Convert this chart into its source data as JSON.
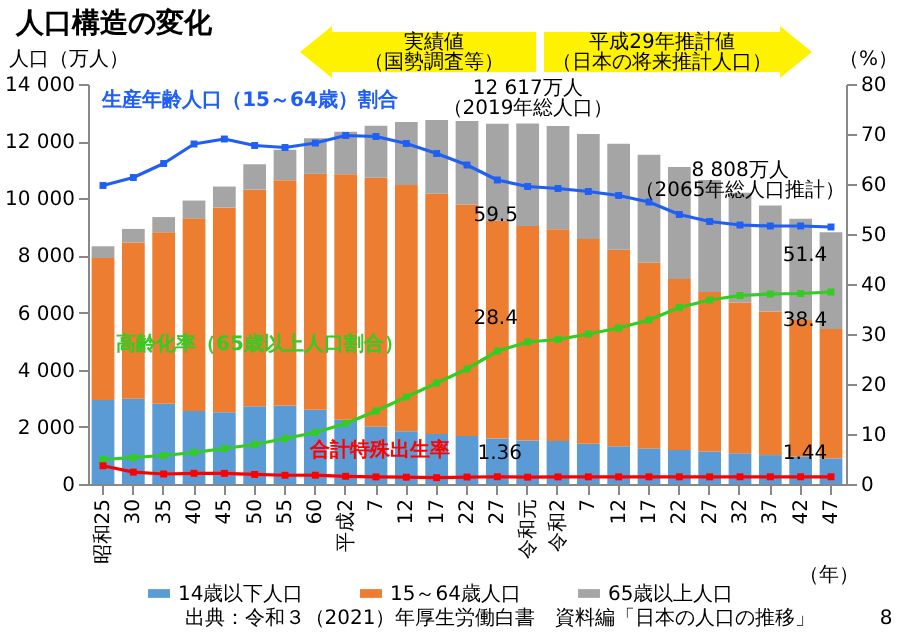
{
  "chart_data": {
    "type": "bar",
    "title": "人口構造の変化",
    "ylabel": "人口（万人）",
    "y2label": "（%）",
    "xlabel": "（年）",
    "categories": [
      "昭和25",
      "30",
      "35",
      "40",
      "45",
      "50",
      "55",
      "60",
      "平成2",
      "7",
      "12",
      "17",
      "22",
      "27",
      "令和元",
      "令和2",
      "7",
      "12",
      "17",
      "22",
      "27",
      "32",
      "37",
      "42",
      "47"
    ],
    "stacked": true,
    "legend": "bottom",
    "marker": "square",
    "line_style": "solid",
    "ylim": [
      0,
      14000
    ],
    "yticks": [
      0,
      {
        "value": 2000,
        "label": "2 000"
      },
      {
        "value": 4000,
        "label": "4 000"
      },
      {
        "value": 6000,
        "label": "6 000"
      },
      {
        "value": 8000,
        "label": "8 000"
      },
      {
        "value": 10000,
        "label": "10 000"
      },
      {
        "value": 12000,
        "label": "12 000"
      },
      {
        "value": 14000,
        "label": "14 000"
      }
    ],
    "y2lim": [
      0,
      80
    ],
    "y2ticks": [
      0,
      10,
      20,
      30,
      40,
      50,
      60,
      70,
      80
    ],
    "series": [
      {
        "name": "14歳以下人口",
        "color": "#5b9bd5",
        "values": [
          2943,
          2980,
          2807,
          2553,
          2515,
          2722,
          2751,
          2603,
          2249,
          2001,
          1847,
          1752,
          1680,
          1589,
          1521,
          1507,
          1407,
          1321,
          1246,
          1194,
          1138,
          1077,
          1012,
          951,
          898
        ]
      },
      {
        "name": "15～64歳人口",
        "color": "#ed7d31",
        "values": [
          4966,
          5473,
          6000,
          6744,
          7157,
          7581,
          7883,
          8251,
          8590,
          8716,
          8622,
          8409,
          8103,
          7629,
          7507,
          7406,
          7170,
          6875,
          6494,
          5978,
          5584,
          5275,
          5028,
          4793,
          4529
        ]
      },
      {
        "name": "65歳以上人口",
        "color": "#a5a5a5",
        "values": [
          411,
          475,
          535,
          624,
          739,
          887,
          1065,
          1247,
          1489,
          1826,
          2204,
          2576,
          2925,
          3387,
          3589,
          3619,
          3677,
          3716,
          3782,
          3921,
          3919,
          3841,
          3704,
          3540,
          3381
        ]
      },
      {
        "name": "生産年齢人口（15～64歳）割合",
        "type": "line",
        "axis": "y2",
        "color": "#1f5ff5",
        "values": [
          59.7,
          61.3,
          64.1,
          68.0,
          69.0,
          67.7,
          67.3,
          68.2,
          69.7,
          69.5,
          68.1,
          66.1,
          63.8,
          60.8,
          59.5,
          59.1,
          58.5,
          57.7,
          56.4,
          53.9,
          52.5,
          51.8,
          51.6,
          51.6,
          51.4
        ],
        "value_labels": [
          null,
          null,
          null,
          null,
          null,
          null,
          null,
          null,
          null,
          null,
          null,
          null,
          null,
          null,
          "59.5",
          null,
          null,
          null,
          null,
          null,
          null,
          null,
          null,
          null,
          "51.4"
        ]
      },
      {
        "name": "高齢化率（65歳以上人口割合）",
        "type": "line",
        "axis": "y2",
        "color": "#33cc22",
        "values": [
          4.9,
          5.3,
          5.7,
          6.3,
          7.1,
          7.9,
          9.1,
          10.3,
          12.1,
          14.6,
          17.4,
          20.2,
          23.0,
          26.6,
          28.4,
          28.9,
          30.0,
          31.2,
          32.8,
          35.3,
          36.8,
          37.7,
          38.0,
          38.1,
          38.4
        ],
        "value_labels": [
          null,
          null,
          null,
          null,
          null,
          null,
          null,
          null,
          null,
          null,
          null,
          null,
          null,
          null,
          "28.4",
          null,
          null,
          null,
          null,
          null,
          null,
          null,
          null,
          null,
          "38.4"
        ]
      },
      {
        "name": "合計特殊出生率",
        "type": "line",
        "axis": "y2",
        "color": "#ff0000",
        "values": [
          3.65,
          2.37,
          2.0,
          2.14,
          2.13,
          1.91,
          1.75,
          1.76,
          1.54,
          1.42,
          1.36,
          1.26,
          1.39,
          1.45,
          1.36,
          1.42,
          1.43,
          1.43,
          1.43,
          1.43,
          1.43,
          1.44,
          1.44,
          1.44,
          1.44
        ],
        "value_labels": [
          null,
          null,
          null,
          null,
          null,
          null,
          null,
          null,
          null,
          null,
          null,
          null,
          null,
          null,
          "1.36",
          null,
          null,
          null,
          null,
          null,
          null,
          null,
          null,
          null,
          "1.44"
        ]
      }
    ],
    "annotations": [
      "実績値",
      "（国勢調査等）",
      "平成29年推計値",
      "（日本の将来推計人口）",
      {
        "text": "12 617万人",
        "x": "令和元",
        "y": 12617
      },
      "（2019年総人口）",
      "8 808万人",
      "（2065年総人口推計）",
      "出典：令和３（2021）年厚生労働白書　資料編「日本の人口の推移」",
      "8"
    ]
  }
}
